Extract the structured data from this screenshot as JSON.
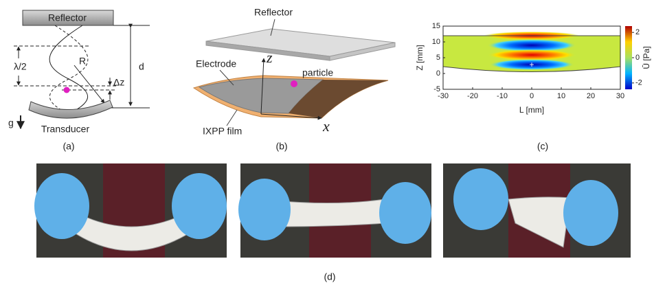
{
  "panel_a": {
    "label": "(a)",
    "reflector": "Reflector",
    "transducer": "Transducer",
    "half_wavelength": "λ/2",
    "radius": "R",
    "delta_z": "Δz",
    "distance": "d",
    "gravity": "g"
  },
  "panel_b": {
    "label": "(b)",
    "reflector": "Reflector",
    "electrode": "Electrode",
    "particle": "particle",
    "film": "IXPP film",
    "z_axis": "z",
    "x_axis": "x"
  },
  "panel_c": {
    "label": "(c)",
    "type": "heatmap",
    "x_label": "L [mm]",
    "y_label": "Z [mm]",
    "colorbar_label": "Ū [Pa]",
    "xlim": [
      -30,
      30
    ],
    "xticks": [
      -30,
      -20,
      -10,
      0,
      10,
      20,
      30
    ],
    "ylim": [
      -5,
      15
    ],
    "yticks": [
      -5,
      0,
      5,
      10,
      15
    ],
    "clim": [
      -2.5,
      2.5
    ],
    "cticks": [
      -2,
      0,
      2
    ]
  },
  "panel_d": {
    "label": "(d)"
  }
}
